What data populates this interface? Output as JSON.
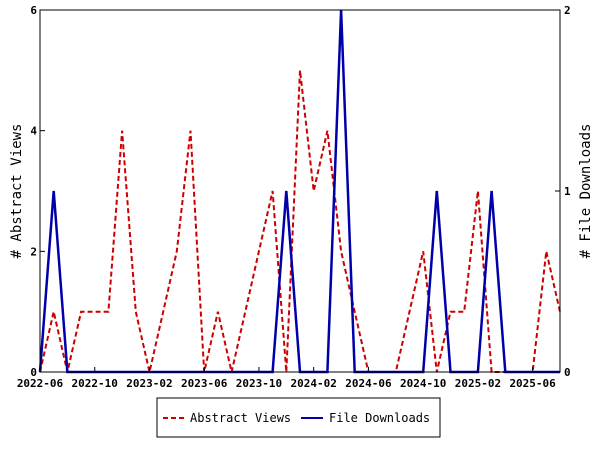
{
  "chart_data": {
    "type": "line",
    "x_dates": [
      "2022-06",
      "2022-07",
      "2022-08",
      "2022-09",
      "2022-10",
      "2022-11",
      "2022-12",
      "2023-01",
      "2023-02",
      "2023-03",
      "2023-04",
      "2023-05",
      "2023-06",
      "2023-07",
      "2023-08",
      "2023-09",
      "2023-10",
      "2023-11",
      "2023-12",
      "2024-01",
      "2024-02",
      "2024-03",
      "2024-04",
      "2024-05",
      "2024-06",
      "2024-07",
      "2024-08",
      "2024-09",
      "2024-10",
      "2024-11",
      "2024-12",
      "2025-01",
      "2025-02",
      "2025-03",
      "2025-04",
      "2025-05",
      "2025-06",
      "2025-07",
      "2025-08"
    ],
    "x_ticks": [
      "2022-06",
      "2022-10",
      "2023-02",
      "2023-06",
      "2023-10",
      "2024-02",
      "2024-06",
      "2024-10",
      "2025-02",
      "2025-06"
    ],
    "ylabel_left": "# Abstract Views",
    "ylabel_right": "# File Downloads",
    "ylim_left": [
      0,
      6
    ],
    "ylim_right": [
      0,
      2
    ],
    "yticks_left": [
      "0",
      "2",
      "4",
      "6"
    ],
    "yticks_right": [
      "0",
      "1",
      "2"
    ],
    "legend_position": "bottom",
    "series": [
      {
        "name": "Abstract Views",
        "axis": "left",
        "color": "#cc0000",
        "dash": true,
        "values": [
          0,
          1,
          0,
          1,
          1,
          1,
          4,
          1,
          0,
          1,
          2,
          4,
          0,
          1,
          0,
          1,
          2,
          3,
          0,
          5,
          3,
          4,
          2,
          1,
          0,
          0,
          0,
          1,
          2,
          0,
          1,
          1,
          3,
          0,
          0,
          0,
          0,
          2,
          1
        ]
      },
      {
        "name": "File Downloads",
        "axis": "right",
        "color": "#0000aa",
        "dash": false,
        "values": [
          0,
          1,
          0,
          0,
          0,
          0,
          0,
          0,
          0,
          0,
          0,
          0,
          0,
          0,
          0,
          0,
          0,
          0,
          1,
          0,
          0,
          0,
          2,
          0,
          0,
          0,
          0,
          0,
          0,
          1,
          0,
          0,
          0,
          1,
          0,
          0,
          0,
          0,
          0
        ]
      }
    ]
  }
}
